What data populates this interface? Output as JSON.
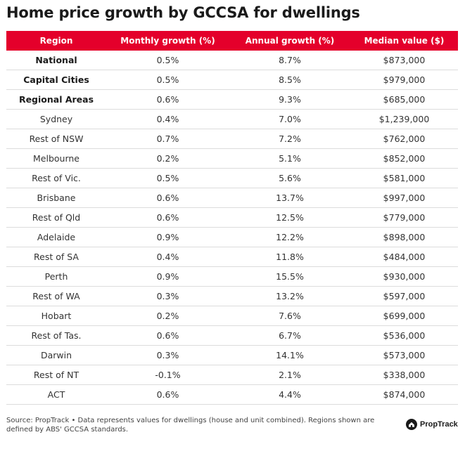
{
  "title": "Home price growth by GCCSA for dwellings",
  "chart_data": {
    "type": "table",
    "title": "Home price growth by GCCSA for dwellings",
    "columns": [
      "Region",
      "Monthly growth (%)",
      "Annual growth (%)",
      "Median value ($)"
    ],
    "rows": [
      {
        "region": "National",
        "monthly": "0.5%",
        "annual": "8.7%",
        "median": "$873,000",
        "bold": true
      },
      {
        "region": "Capital Cities",
        "monthly": "0.5%",
        "annual": "8.5%",
        "median": "$979,000",
        "bold": true
      },
      {
        "region": "Regional Areas",
        "monthly": "0.6%",
        "annual": "9.3%",
        "median": "$685,000",
        "bold": true
      },
      {
        "region": "Sydney",
        "monthly": "0.4%",
        "annual": "7.0%",
        "median": "$1,239,000",
        "bold": false
      },
      {
        "region": "Rest of NSW",
        "monthly": "0.7%",
        "annual": "7.2%",
        "median": "$762,000",
        "bold": false
      },
      {
        "region": "Melbourne",
        "monthly": "0.2%",
        "annual": "5.1%",
        "median": "$852,000",
        "bold": false
      },
      {
        "region": "Rest of Vic.",
        "monthly": "0.5%",
        "annual": "5.6%",
        "median": "$581,000",
        "bold": false
      },
      {
        "region": "Brisbane",
        "monthly": "0.6%",
        "annual": "13.7%",
        "median": "$997,000",
        "bold": false
      },
      {
        "region": "Rest of Qld",
        "monthly": "0.6%",
        "annual": "12.5%",
        "median": "$779,000",
        "bold": false
      },
      {
        "region": "Adelaide",
        "monthly": "0.9%",
        "annual": "12.2%",
        "median": "$898,000",
        "bold": false
      },
      {
        "region": "Rest of SA",
        "monthly": "0.4%",
        "annual": "11.8%",
        "median": "$484,000",
        "bold": false
      },
      {
        "region": "Perth",
        "monthly": "0.9%",
        "annual": "15.5%",
        "median": "$930,000",
        "bold": false
      },
      {
        "region": "Rest of WA",
        "monthly": "0.3%",
        "annual": "13.2%",
        "median": "$597,000",
        "bold": false
      },
      {
        "region": "Hobart",
        "monthly": "0.2%",
        "annual": "7.6%",
        "median": "$699,000",
        "bold": false
      },
      {
        "region": "Rest of Tas.",
        "monthly": "0.6%",
        "annual": "6.7%",
        "median": "$536,000",
        "bold": false
      },
      {
        "region": "Darwin",
        "monthly": "0.3%",
        "annual": "14.1%",
        "median": "$573,000",
        "bold": false
      },
      {
        "region": "Rest of NT",
        "monthly": "-0.1%",
        "annual": "2.1%",
        "median": "$338,000",
        "bold": false
      },
      {
        "region": "ACT",
        "monthly": "0.6%",
        "annual": "4.4%",
        "median": "$874,000",
        "bold": false
      }
    ]
  },
  "footer": {
    "source": "Source: PropTrack • Data represents values for dwellings (house and unit combined). Regions shown are defined by ABS' GCCSA standards."
  },
  "brand": {
    "name": "PropTrack",
    "icon": "proptrack-logo-icon"
  },
  "colors": {
    "header_bg": "#e4002b",
    "header_text": "#ffffff",
    "row_border": "#dcdcdc"
  }
}
